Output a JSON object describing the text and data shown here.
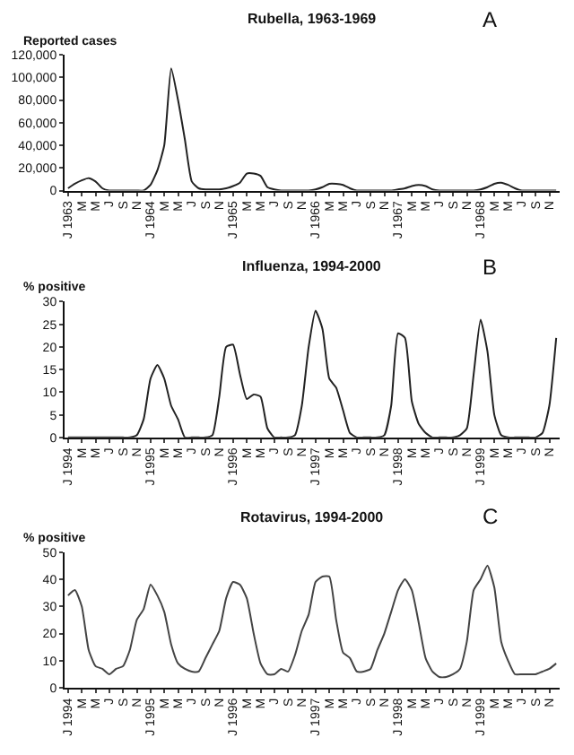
{
  "chart_data": [
    {
      "type": "line",
      "title": "Rubella, 1963-1969",
      "ylabel": "Reported cases",
      "annotations": [
        "A"
      ],
      "marker": "none",
      "line_style": "solid",
      "categories": [
        "J 1963",
        null,
        "M",
        null,
        "M",
        null,
        "J",
        null,
        "S",
        null,
        "N",
        null,
        "J 1964",
        null,
        "M",
        null,
        "M",
        null,
        "J",
        null,
        "S",
        null,
        "N",
        null,
        "J 1965",
        null,
        "M",
        null,
        "M",
        null,
        "J",
        null,
        "S",
        null,
        "N",
        null,
        "J 1966",
        null,
        "M",
        null,
        "M",
        null,
        "J",
        null,
        "S",
        null,
        "N",
        null,
        "J 1967",
        null,
        "M",
        null,
        "M",
        null,
        "J",
        null,
        "S",
        null,
        "N",
        null,
        "J 1968",
        null,
        "M",
        null,
        "M",
        null,
        "J",
        null,
        "S",
        null,
        "N",
        null
      ],
      "series": [
        {
          "color": "#222222",
          "values": [
            2000,
            6000,
            9000,
            11000,
            8000,
            2000,
            0,
            0,
            0,
            0,
            0,
            0,
            5000,
            18000,
            40000,
            108000,
            80000,
            45000,
            8000,
            2000,
            1000,
            1000,
            1000,
            2000,
            4000,
            7000,
            15000,
            15000,
            13000,
            3000,
            1000,
            0,
            0,
            0,
            0,
            0,
            1000,
            3000,
            6000,
            6000,
            5000,
            2000,
            0,
            0,
            0,
            0,
            0,
            0,
            1000,
            2000,
            4000,
            5000,
            4000,
            1000,
            0,
            0,
            0,
            0,
            0,
            0,
            1000,
            3000,
            6000,
            7000,
            5000,
            2000,
            0,
            0,
            0,
            0,
            0,
            0
          ]
        }
      ],
      "ylim": [
        0,
        120000
      ],
      "yticks": [
        {
          "value": 0,
          "label": "0"
        },
        {
          "value": 20000,
          "label": "20,000"
        },
        {
          "value": 40000,
          "label": "40,000"
        },
        {
          "value": 60000,
          "label": "60,000"
        },
        {
          "value": 80000,
          "label": "80,000"
        },
        {
          "value": 100000,
          "label": "100,000"
        },
        {
          "value": 120000,
          "label": "120,000"
        }
      ]
    },
    {
      "type": "line",
      "title": "Influenza, 1994-2000",
      "ylabel": "% positive",
      "annotations": [
        "B"
      ],
      "marker": "none",
      "line_style": "solid",
      "categories": [
        "J 1994",
        null,
        "M",
        null,
        "M",
        null,
        "J",
        null,
        "S",
        null,
        "N",
        null,
        "J 1995",
        null,
        "M",
        null,
        "M",
        null,
        "J",
        null,
        "S",
        null,
        "N",
        null,
        "J 1996",
        null,
        "M",
        null,
        "M",
        null,
        "J",
        null,
        "S",
        null,
        "N",
        null,
        "J 1997",
        null,
        "M",
        null,
        "M",
        null,
        "J",
        null,
        "S",
        null,
        "N",
        null,
        "J 1998",
        null,
        "M",
        null,
        "M",
        null,
        "J",
        null,
        "S",
        null,
        "N",
        null,
        "J 1999",
        null,
        "M",
        null,
        "M",
        null,
        "J",
        null,
        "S",
        null,
        "N",
        null
      ],
      "series": [
        {
          "color": "#222222",
          "values": [
            0,
            0,
            0,
            0,
            0,
            0,
            0,
            0,
            0,
            0,
            0.5,
            4,
            13,
            16,
            13,
            7,
            4,
            0,
            0,
            0,
            0,
            0.5,
            9,
            20,
            20.5,
            14,
            8.5,
            9.5,
            9,
            2,
            0,
            0,
            0,
            0.5,
            7,
            20,
            28,
            24,
            13,
            11,
            6,
            1,
            0,
            0,
            0,
            0,
            0.5,
            7,
            23,
            22,
            8,
            3,
            1,
            0,
            0,
            0,
            0,
            0.5,
            2,
            14,
            26,
            19,
            5,
            0.5,
            0,
            0,
            0,
            0,
            0,
            1,
            7,
            22
          ]
        }
      ],
      "ylim": [
        0,
        30
      ],
      "yticks": [
        0,
        5,
        10,
        15,
        20,
        25,
        30
      ]
    },
    {
      "type": "line",
      "title": "Rotavirus, 1994-2000",
      "ylabel": "% positive",
      "annotations": [
        "C"
      ],
      "marker": "none",
      "line_style": "solid",
      "categories": [
        "J 1994",
        null,
        "M",
        null,
        "M",
        null,
        "J",
        null,
        "S",
        null,
        "N",
        null,
        "J 1995",
        null,
        "M",
        null,
        "M",
        null,
        "J",
        null,
        "S",
        null,
        "N",
        null,
        "J 1996",
        null,
        "M",
        null,
        "M",
        null,
        "J",
        null,
        "S",
        null,
        "N",
        null,
        "J 1997",
        null,
        "M",
        null,
        "M",
        null,
        "J",
        null,
        "S",
        null,
        "N",
        null,
        "J 1998",
        null,
        "M",
        null,
        "M",
        null,
        "J",
        null,
        "S",
        null,
        "N",
        null,
        "J 1999",
        null,
        "M",
        null,
        "M",
        null,
        "J",
        null,
        "S",
        null,
        "N",
        null
      ],
      "series": [
        {
          "color": "#444444",
          "values": [
            34,
            36,
            30,
            14,
            8,
            7,
            5,
            7,
            8,
            14,
            25,
            29,
            38,
            34,
            28,
            16,
            9,
            7,
            6,
            6,
            11,
            16,
            21,
            33,
            39,
            38,
            33,
            20,
            9,
            5,
            5,
            7,
            6,
            12,
            21,
            27,
            39,
            41,
            41,
            25,
            13,
            11,
            6,
            6,
            7,
            14,
            20,
            28,
            36,
            40,
            36,
            24,
            11,
            6,
            4,
            4,
            5,
            7,
            17,
            36,
            40,
            45,
            37,
            17,
            10,
            5,
            5,
            5,
            5,
            6,
            7,
            9
          ]
        }
      ],
      "ylim": [
        0,
        50
      ],
      "yticks": [
        0,
        10,
        20,
        30,
        40,
        50
      ]
    }
  ]
}
